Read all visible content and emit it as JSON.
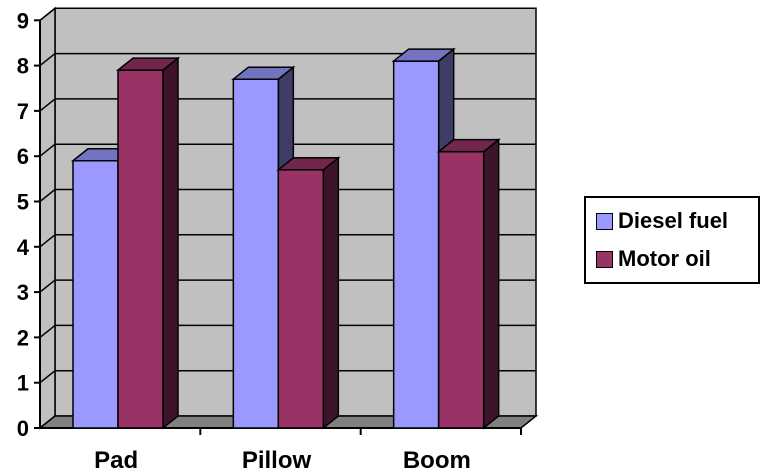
{
  "chart_data": {
    "type": "bar",
    "title": "",
    "xlabel": "",
    "ylabel": "",
    "categories": [
      "Pad",
      "Pillow",
      "Boom"
    ],
    "series": [
      {
        "name": "Diesel fuel",
        "values": [
          5.9,
          7.7,
          8.1
        ],
        "color": "#9999ff"
      },
      {
        "name": "Motor oil",
        "values": [
          7.9,
          5.7,
          6.1
        ],
        "color": "#993366"
      }
    ],
    "ylim": [
      0,
      9
    ],
    "yticks": [
      "0",
      "1",
      "2",
      "3",
      "4",
      "5",
      "6",
      "7",
      "8",
      "9"
    ],
    "grid": true,
    "three_d": true,
    "legend": "right",
    "wall_color": "#c0c0c0",
    "floor_color": "#808080"
  }
}
